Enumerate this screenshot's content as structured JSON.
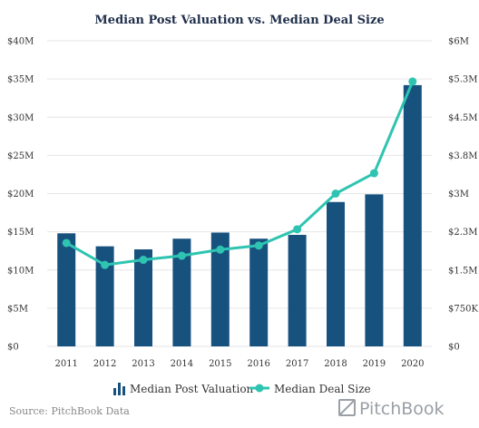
{
  "chart_data": {
    "type": "bar",
    "title": "Median Post Valuation vs. Median Deal Size",
    "categories": [
      "2011",
      "2012",
      "2013",
      "2014",
      "2015",
      "2016",
      "2017",
      "2018",
      "2019",
      "2020"
    ],
    "series": [
      {
        "name": "Median Post Valuation",
        "type": "bar",
        "axis": "left",
        "color": "#17527f",
        "values": [
          14.8,
          13.1,
          12.7,
          14.1,
          14.9,
          14.1,
          14.6,
          18.9,
          19.9,
          34.2
        ]
      },
      {
        "name": "Median Deal Size",
        "type": "line",
        "axis": "right",
        "color": "#2ec4b1",
        "values": [
          2.03,
          1.6,
          1.7,
          1.78,
          1.9,
          1.98,
          2.3,
          3.0,
          3.4,
          5.2
        ]
      }
    ],
    "y_left": {
      "ylim": [
        0,
        40
      ],
      "ticks": [
        0,
        5,
        10,
        15,
        20,
        25,
        30,
        35,
        40
      ],
      "tick_labels": [
        "$0",
        "$5M",
        "$10M",
        "$15M",
        "$20M",
        "$25M",
        "$30M",
        "$35M",
        "$40M"
      ]
    },
    "y_right": {
      "ylim": [
        0,
        6
      ],
      "ticks": [
        0,
        0.75,
        1.5,
        2.25,
        3,
        3.75,
        4.5,
        5.25,
        6
      ],
      "tick_labels": [
        "$0",
        "$750K",
        "$1.5M",
        "$2.3M",
        "$3M",
        "$3.8M",
        "$4.5M",
        "$5.3M",
        "$6M"
      ]
    },
    "grid": true,
    "legend": "bottom"
  },
  "legend_items": [
    "Median Post Valuation",
    "Median Deal Size"
  ],
  "source": "Source: PitchBook Data",
  "brand": "PitchBook",
  "colors": {
    "bar": "#17527f",
    "line": "#2ec4b1",
    "grid": "#e6e6e6",
    "title": "#1f2e4a"
  }
}
